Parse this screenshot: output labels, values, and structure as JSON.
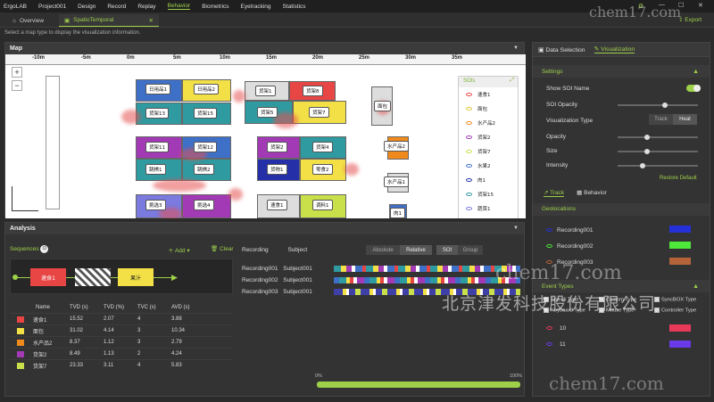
{
  "topbar": {
    "menu": [
      "ErgoLAB",
      "Project001",
      "Design",
      "Record",
      "Replay",
      "Behavior",
      "Biometrics",
      "Eyetracking",
      "Statistics"
    ]
  },
  "tabs": [
    {
      "label": "Overview"
    },
    {
      "label": "SpatioTemporal"
    }
  ],
  "export_label": "Export",
  "hint": "Select a map type to display the visualization information.",
  "map": {
    "title": "Map",
    "ruler": [
      "-10m",
      "-5m",
      "0m",
      "5m",
      "10m",
      "15m",
      "20m",
      "25m",
      "30m",
      "35m"
    ],
    "shelves": [
      "日用品1",
      "日用品2",
      "货架1",
      "货架8",
      "货架13",
      "货架15",
      "货架5",
      "货架7",
      "货架11",
      "货架12",
      "货架2",
      "货架4",
      "跳棋1",
      "跳棋2",
      "货物1",
      "零食2",
      "挑选3",
      "挑选4",
      "速食1",
      "调料1",
      "面包",
      "水产品2",
      "水产品1",
      "肉1"
    ],
    "soi": {
      "title": "SOIs",
      "items": [
        "速食1",
        "面包",
        "水产品2",
        "货架2",
        "货架7",
        "水果2",
        "肉1",
        "货架15",
        "蔬菜1"
      ]
    }
  },
  "analysis": {
    "title": "Analysis",
    "sequences_label": "Sequences",
    "add_label": "Add",
    "clear_label": "Clear",
    "seq": [
      "速食1",
      "果汁"
    ],
    "headers": [
      "Name",
      "TVD (s)",
      "TVD (%)",
      "TVC (s)",
      "AVD (s)"
    ],
    "rows": [
      {
        "color": "#e84545",
        "name": "速食1",
        "c1": "15.52",
        "c2": "2.07",
        "c3": "4",
        "c4": "3.88"
      },
      {
        "color": "#f2e046",
        "name": "面包",
        "c1": "31.02",
        "c2": "4.14",
        "c3": "3",
        "c4": "10.34"
      },
      {
        "color": "#f08a1c",
        "name": "水产品2",
        "c1": "8.37",
        "c2": "1.12",
        "c3": "3",
        "c4": "2.79"
      },
      {
        "color": "#a33ab5",
        "name": "货架2",
        "c1": "8.49",
        "c2": "1.13",
        "c3": "2",
        "c4": "4.24"
      },
      {
        "color": "#c9e04a",
        "name": "货架7",
        "c1": "23.33",
        "c2": "3.11",
        "c3": "4",
        "c4": "5.83"
      }
    ],
    "rec_headers": [
      "Recording",
      "Subject"
    ],
    "recordings": [
      {
        "rec": "Recording001",
        "subj": "Subject001"
      },
      {
        "rec": "Recording002",
        "subj": "Subject001"
      },
      {
        "rec": "Recording003",
        "subj": "Subject001"
      }
    ],
    "toggle1": [
      "Absolute",
      "Relative"
    ],
    "toggle2": [
      "SOI",
      "Group"
    ],
    "progress": {
      "start": "0%",
      "end": "100%",
      "value": 1.0
    }
  },
  "right": {
    "tabs": [
      "Data Selection",
      "Visualization"
    ],
    "settings_label": "Settings",
    "show_soi": "Show SOI Name",
    "soi_opacity": "SOI Opacity",
    "vis_type": "Visualization Type",
    "vis_opts": [
      "Track",
      "Heat"
    ],
    "opacity": "Opacity",
    "size": "Size",
    "intensity": "Intensity",
    "restore": "Restore Default",
    "subtabs": [
      "Track",
      "Behavior"
    ],
    "geolocations": "Geolocations",
    "geos": [
      {
        "name": "Recording001",
        "color": "#2530d8"
      },
      {
        "name": "Recording002",
        "color": "#4ee83a"
      },
      {
        "name": "Recording003",
        "color": "#b5643a"
      }
    ],
    "event_types": "Event Types",
    "event_checks": [
      "Stimuli Type",
      "Custom Type",
      "SyncBOX Type",
      "Keyboard Type",
      "Mouse Type",
      "Controller Type"
    ],
    "events": [
      {
        "name": "10",
        "color": "#e8395a"
      },
      {
        "name": "11",
        "color": "#6a3ae8"
      }
    ]
  },
  "watermarks": [
    "北京津发科技股份有限公司",
    "chem17.com",
    "chem17.com",
    "chem17.com"
  ]
}
